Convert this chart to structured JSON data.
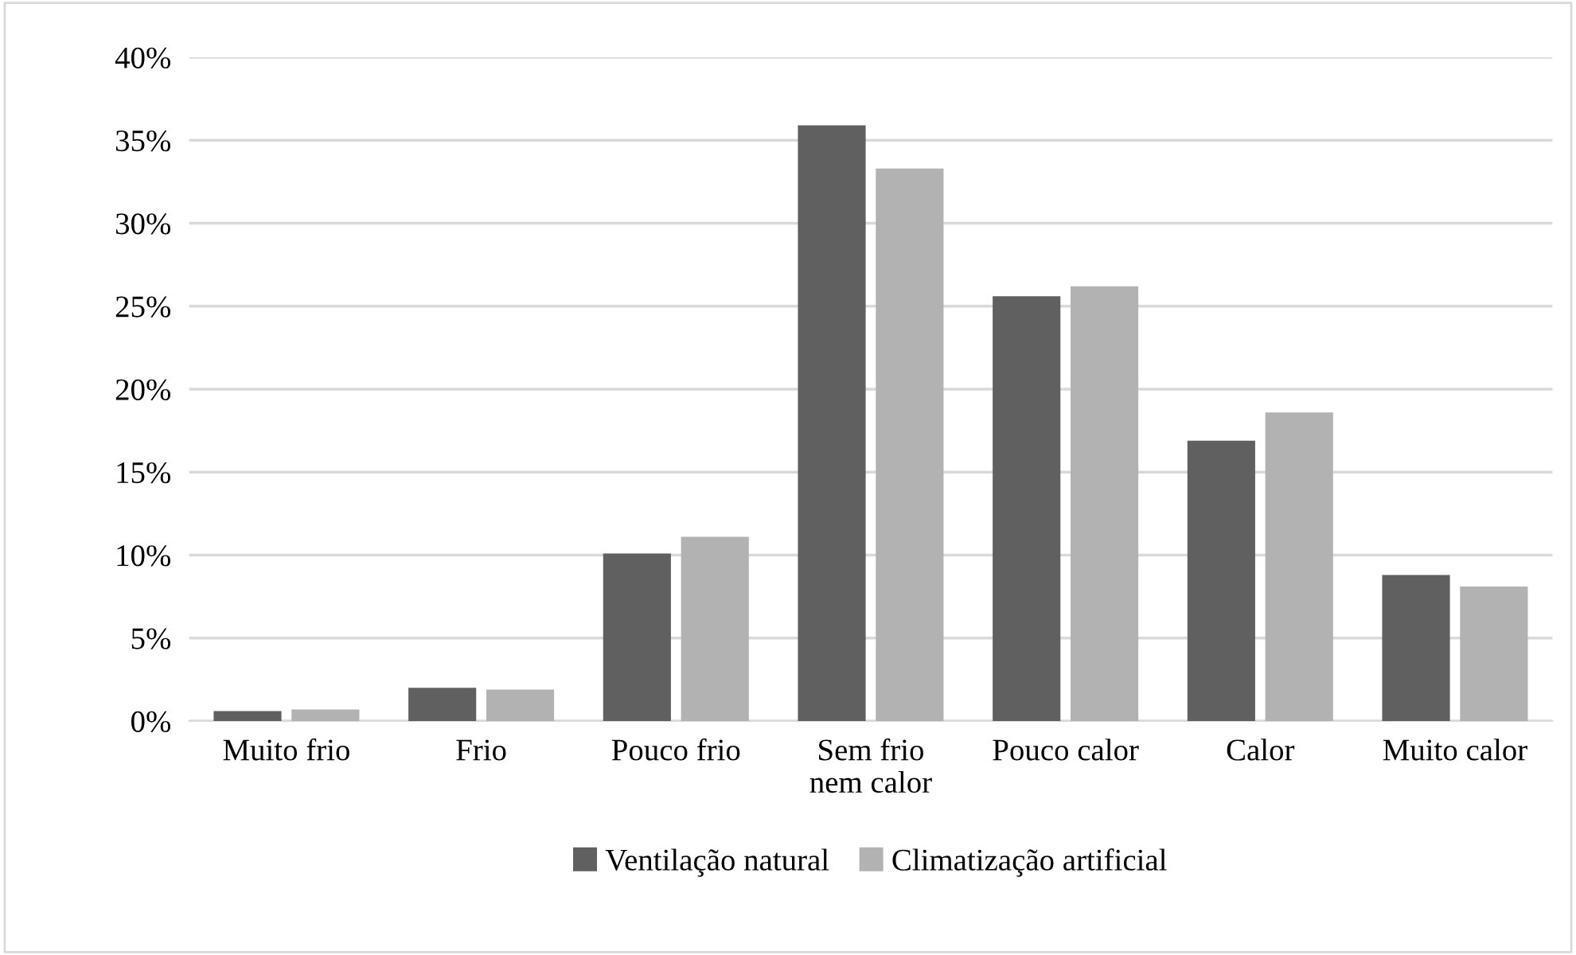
{
  "chart_data": {
    "type": "bar",
    "categories": [
      "Muito frio",
      "Frio",
      "Pouco frio",
      "Sem frio\nnem calor",
      "Pouco calor",
      "Calor",
      "Muito calor"
    ],
    "series": [
      {
        "name": "Ventilação natural",
        "color": "#606060",
        "values": [
          0.6,
          2.0,
          10.1,
          35.9,
          25.6,
          16.9,
          8.8
        ]
      },
      {
        "name": "Climatização artificial",
        "color": "#b2b2b2",
        "values": [
          0.7,
          1.9,
          11.1,
          33.3,
          26.2,
          18.6,
          8.1
        ]
      }
    ],
    "ylim": [
      0,
      40
    ],
    "yticks": [
      {
        "value": 0,
        "label": "0%"
      },
      {
        "value": 5,
        "label": "5%"
      },
      {
        "value": 10,
        "label": "10%"
      },
      {
        "value": 15,
        "label": "15%"
      },
      {
        "value": 20,
        "label": "20%"
      },
      {
        "value": 25,
        "label": "25%"
      },
      {
        "value": 30,
        "label": "30%"
      },
      {
        "value": 35,
        "label": "35%"
      },
      {
        "value": 40,
        "label": "40%"
      }
    ],
    "grid": "y",
    "legend": "bottom"
  }
}
